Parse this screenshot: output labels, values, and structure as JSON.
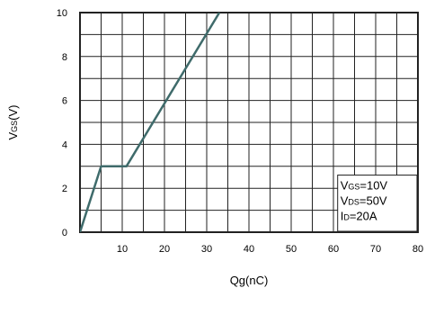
{
  "chart_data": {
    "type": "line",
    "xlabel": "Qg(nC)",
    "ylabel": {
      "base": "V",
      "sub": "GS",
      "rest": "(V)"
    },
    "xlim": [
      0,
      80
    ],
    "ylim": [
      0,
      10
    ],
    "xticks": [
      "10",
      "20",
      "30",
      "40",
      "50",
      "60",
      "70",
      "80"
    ],
    "yticks": [
      "0",
      "2",
      "4",
      "6",
      "8",
      "10"
    ],
    "grid": true,
    "series": [
      {
        "color": "#3f6b6b",
        "x": [
          0,
          5,
          11,
          33
        ],
        "y": [
          0,
          3,
          3,
          10
        ]
      }
    ],
    "annotations": [
      {
        "base": "V",
        "sub": "GS",
        "rest": "=10V"
      },
      {
        "base": "V",
        "sub": "DS",
        "rest": "=50V"
      },
      {
        "base": "I",
        "sub": "D",
        "rest": "=20A"
      }
    ]
  }
}
